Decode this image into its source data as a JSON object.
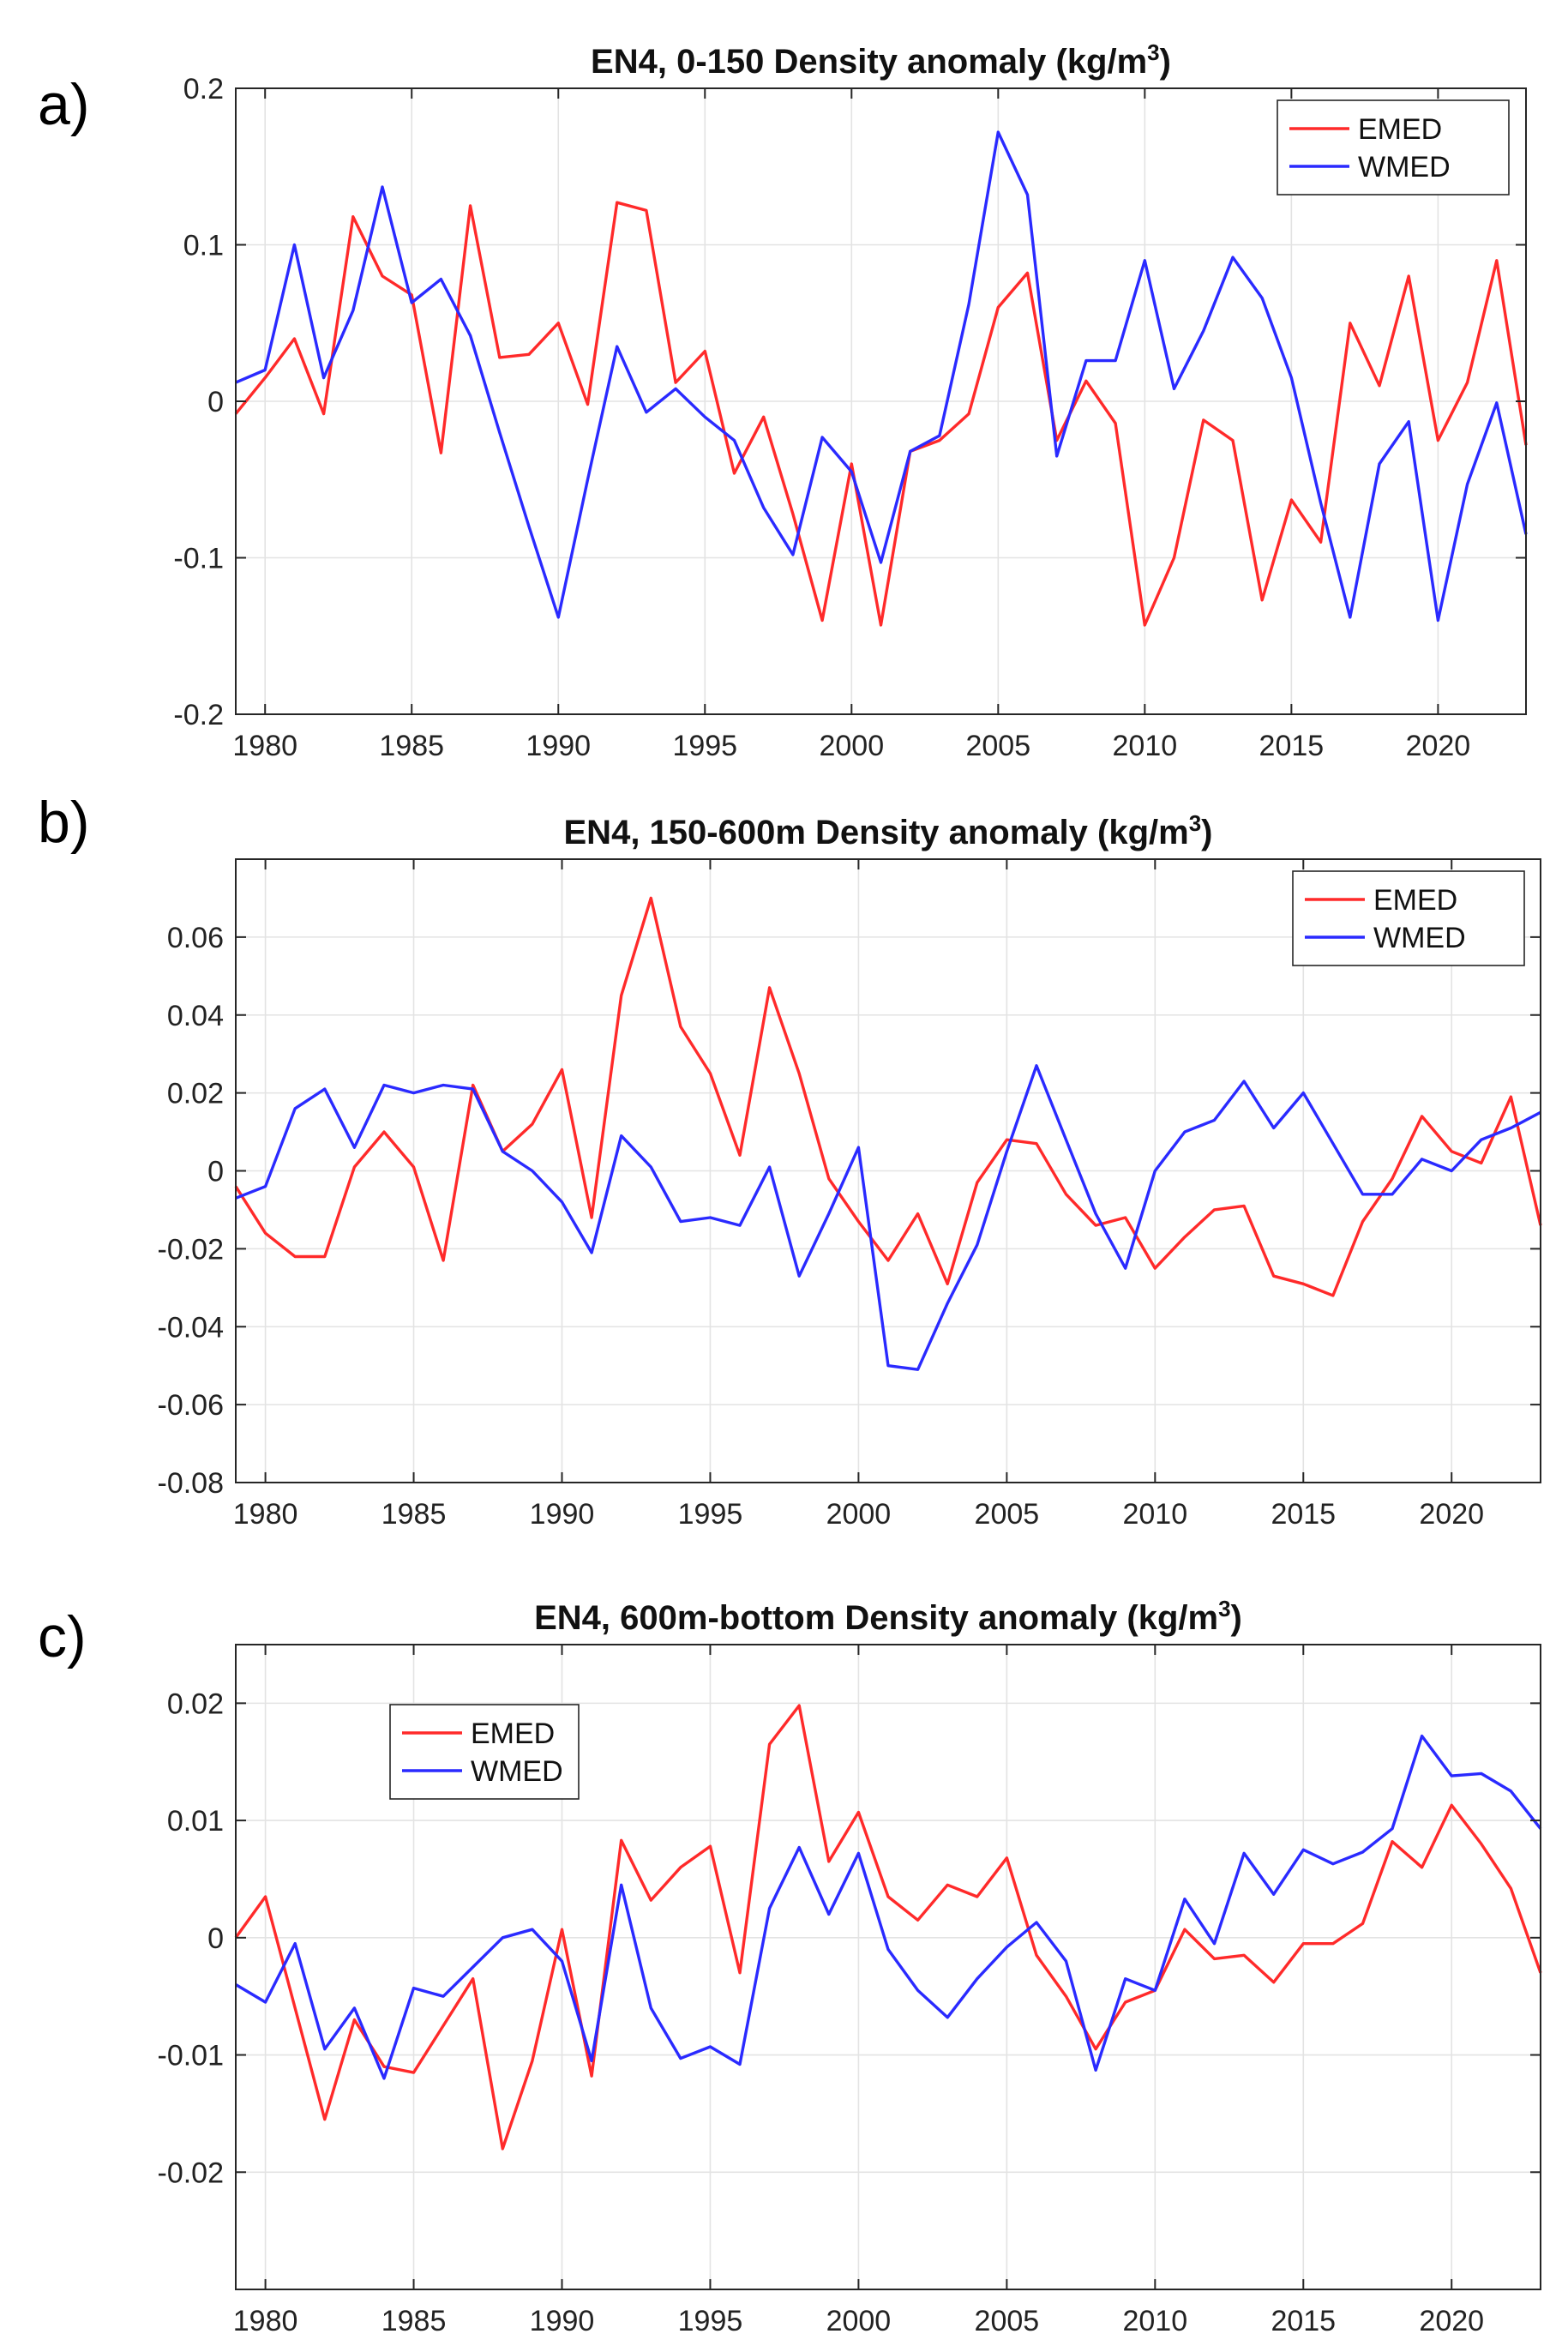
{
  "figure_colors": {
    "emed": "#ff2a2a",
    "wmed": "#2a2aff",
    "grid": "#e3e3e3",
    "axis": "#262626"
  },
  "panels": [
    {
      "letter": "a)"
    },
    {
      "letter": "b)"
    },
    {
      "letter": "c)"
    }
  ],
  "chart_data": [
    {
      "type": "line",
      "title": "EN4, 0-150 Density anomaly (kg/m",
      "title_superscript": "3",
      "title_close": ")",
      "xlabel": "",
      "ylabel": "",
      "xlim": [
        1979,
        2023
      ],
      "ylim": [
        -0.2,
        0.2
      ],
      "xticks": [
        1980,
        1985,
        1990,
        1995,
        2000,
        2005,
        2010,
        2015,
        2020
      ],
      "yticks": [
        -0.2,
        -0.1,
        0,
        0.1,
        0.2
      ],
      "ytick_labels": [
        "-0.2",
        "-0.1",
        "0",
        "0.1",
        "0.2"
      ],
      "grid": true,
      "legend_position": "top-right",
      "x": [
        1979,
        1980,
        1981,
        1982,
        1983,
        1984,
        1985,
        1986,
        1987,
        1988,
        1989,
        1990,
        1991,
        1992,
        1993,
        1994,
        1995,
        1996,
        1997,
        1998,
        1999,
        2000,
        2001,
        2002,
        2003,
        2004,
        2005,
        2006,
        2007,
        2008,
        2009,
        2010,
        2011,
        2012,
        2013,
        2014,
        2015,
        2016,
        2017,
        2018,
        2019,
        2020,
        2021,
        2022,
        2023
      ],
      "series": [
        {
          "name": "EMED",
          "color": "#ff2a2a",
          "values": [
            -0.008,
            0.015,
            0.04,
            -0.008,
            0.118,
            0.08,
            0.068,
            -0.033,
            0.125,
            0.028,
            0.03,
            0.05,
            -0.002,
            0.127,
            0.122,
            0.012,
            0.032,
            -0.046,
            -0.01,
            -0.072,
            -0.14,
            -0.04,
            -0.143,
            -0.032,
            -0.025,
            -0.008,
            0.06,
            0.082,
            -0.025,
            0.013,
            -0.014,
            -0.143,
            -0.1,
            -0.012,
            -0.025,
            -0.127,
            -0.063,
            -0.09,
            0.05,
            0.01,
            0.08,
            -0.025,
            0.012,
            0.09,
            -0.028
          ]
        },
        {
          "name": "WMED",
          "color": "#2a2aff",
          "values": [
            0.012,
            0.02,
            0.1,
            0.015,
            0.058,
            0.137,
            0.063,
            0.078,
            0.042,
            -0.02,
            -0.08,
            -0.138,
            -0.05,
            0.035,
            -0.007,
            0.008,
            -0.01,
            -0.025,
            -0.068,
            -0.098,
            -0.023,
            -0.045,
            -0.103,
            -0.032,
            -0.022,
            0.062,
            0.172,
            0.132,
            -0.035,
            0.026,
            0.026,
            0.09,
            0.008,
            0.045,
            0.092,
            0.066,
            0.015,
            -0.065,
            -0.138,
            -0.04,
            -0.013,
            -0.14,
            -0.053,
            -0.001,
            -0.085
          ]
        }
      ]
    },
    {
      "type": "line",
      "title": "EN4, 150-600m Density anomaly (kg/m",
      "title_superscript": "3",
      "title_close": ")",
      "xlabel": "",
      "ylabel": "",
      "xlim": [
        1979,
        2023
      ],
      "ylim": [
        -0.08,
        0.08
      ],
      "xticks": [
        1980,
        1985,
        1990,
        1995,
        2000,
        2005,
        2010,
        2015,
        2020
      ],
      "yticks": [
        -0.08,
        -0.06,
        -0.04,
        -0.02,
        0,
        0.02,
        0.04,
        0.06
      ],
      "ytick_labels": [
        "-0.08",
        "-0.06",
        "-0.04",
        "-0.02",
        "0",
        "0.02",
        "0.04",
        "0.06"
      ],
      "grid": true,
      "legend_position": "top-right",
      "x": [
        1979,
        1980,
        1981,
        1982,
        1983,
        1984,
        1985,
        1986,
        1987,
        1988,
        1989,
        1990,
        1991,
        1992,
        1993,
        1994,
        1995,
        1996,
        1997,
        1998,
        1999,
        2000,
        2001,
        2002,
        2003,
        2004,
        2005,
        2006,
        2007,
        2008,
        2009,
        2010,
        2011,
        2012,
        2013,
        2014,
        2015,
        2016,
        2017,
        2018,
        2019,
        2020,
        2021,
        2022,
        2023
      ],
      "series": [
        {
          "name": "EMED",
          "color": "#ff2a2a",
          "values": [
            -0.004,
            -0.016,
            -0.022,
            -0.022,
            0.001,
            0.01,
            0.001,
            -0.023,
            0.022,
            0.005,
            0.012,
            0.026,
            -0.012,
            0.045,
            0.07,
            0.037,
            0.025,
            0.004,
            0.047,
            0.025,
            -0.002,
            -0.013,
            -0.023,
            -0.011,
            -0.029,
            -0.003,
            0.008,
            0.007,
            -0.006,
            -0.014,
            -0.012,
            -0.025,
            -0.017,
            -0.01,
            -0.009,
            -0.027,
            -0.029,
            -0.032,
            -0.013,
            -0.002,
            0.014,
            0.005,
            0.002,
            0.019,
            -0.014
          ]
        },
        {
          "name": "WMED",
          "color": "#2a2aff",
          "values": [
            -0.007,
            -0.004,
            0.016,
            0.021,
            0.006,
            0.022,
            0.02,
            0.022,
            0.021,
            0.005,
            0.0,
            -0.008,
            -0.021,
            0.009,
            0.001,
            -0.013,
            -0.012,
            -0.014,
            0.001,
            -0.027,
            -0.011,
            0.006,
            -0.05,
            -0.051,
            -0.034,
            -0.019,
            0.005,
            0.027,
            0.008,
            -0.011,
            -0.025,
            0.0,
            0.01,
            0.013,
            0.023,
            0.011,
            0.02,
            0.007,
            -0.006,
            -0.006,
            0.003,
            0.0,
            0.008,
            0.011,
            0.015
          ]
        }
      ]
    },
    {
      "type": "line",
      "title": "EN4, 600m-bottom Density anomaly (kg/m",
      "title_superscript": "3",
      "title_close": ")",
      "xlabel": "",
      "ylabel": "",
      "xlim": [
        1979,
        2023
      ],
      "ylim": [
        -0.03,
        0.025
      ],
      "xticks": [
        1980,
        1985,
        1990,
        1995,
        2000,
        2005,
        2010,
        2015,
        2020
      ],
      "yticks": [
        -0.02,
        -0.01,
        0,
        0.01,
        0.02
      ],
      "ytick_labels": [
        "-0.02",
        "-0.01",
        "0",
        "0.01",
        "0.02"
      ],
      "grid": true,
      "legend_position": "top-left",
      "x": [
        1979,
        1980,
        1981,
        1982,
        1983,
        1984,
        1985,
        1986,
        1987,
        1988,
        1989,
        1990,
        1991,
        1992,
        1993,
        1994,
        1995,
        1996,
        1997,
        1998,
        1999,
        2000,
        2001,
        2002,
        2003,
        2004,
        2005,
        2006,
        2007,
        2008,
        2009,
        2010,
        2011,
        2012,
        2013,
        2014,
        2015,
        2016,
        2017,
        2018,
        2019,
        2020,
        2021,
        2022,
        2023
      ],
      "series": [
        {
          "name": "EMED",
          "color": "#ff2a2a",
          "values": [
            0.0,
            0.0035,
            -0.006,
            -0.0155,
            -0.007,
            -0.011,
            -0.0115,
            -0.0075,
            -0.0035,
            -0.018,
            -0.0105,
            0.0007,
            -0.0118,
            0.0083,
            0.0032,
            0.006,
            0.0078,
            -0.003,
            0.0165,
            0.0198,
            0.0065,
            0.0107,
            0.0035,
            0.0015,
            0.0045,
            0.0035,
            0.0068,
            -0.0015,
            -0.005,
            -0.0095,
            -0.0055,
            -0.0045,
            0.0007,
            -0.0018,
            -0.0015,
            -0.0038,
            -0.0005,
            -0.0005,
            0.0012,
            0.0082,
            0.006,
            0.0113,
            0.008,
            0.0042,
            -0.003
          ]
        },
        {
          "name": "WMED",
          "color": "#2a2aff",
          "values": [
            -0.004,
            -0.0055,
            -0.0005,
            -0.0095,
            -0.006,
            -0.012,
            -0.0043,
            -0.005,
            -0.0025,
            0.0,
            0.0007,
            -0.002,
            -0.0105,
            0.0045,
            -0.006,
            -0.0103,
            -0.0093,
            -0.0108,
            0.0025,
            0.0077,
            0.002,
            0.0072,
            -0.001,
            -0.0045,
            -0.0068,
            -0.0035,
            -0.0008,
            0.0013,
            -0.002,
            -0.0113,
            -0.0035,
            -0.0045,
            0.0033,
            -0.0005,
            0.0072,
            0.0037,
            0.0075,
            0.0063,
            0.0073,
            0.0093,
            0.0172,
            0.0138,
            0.014,
            0.0125,
            0.0093
          ]
        }
      ]
    }
  ]
}
